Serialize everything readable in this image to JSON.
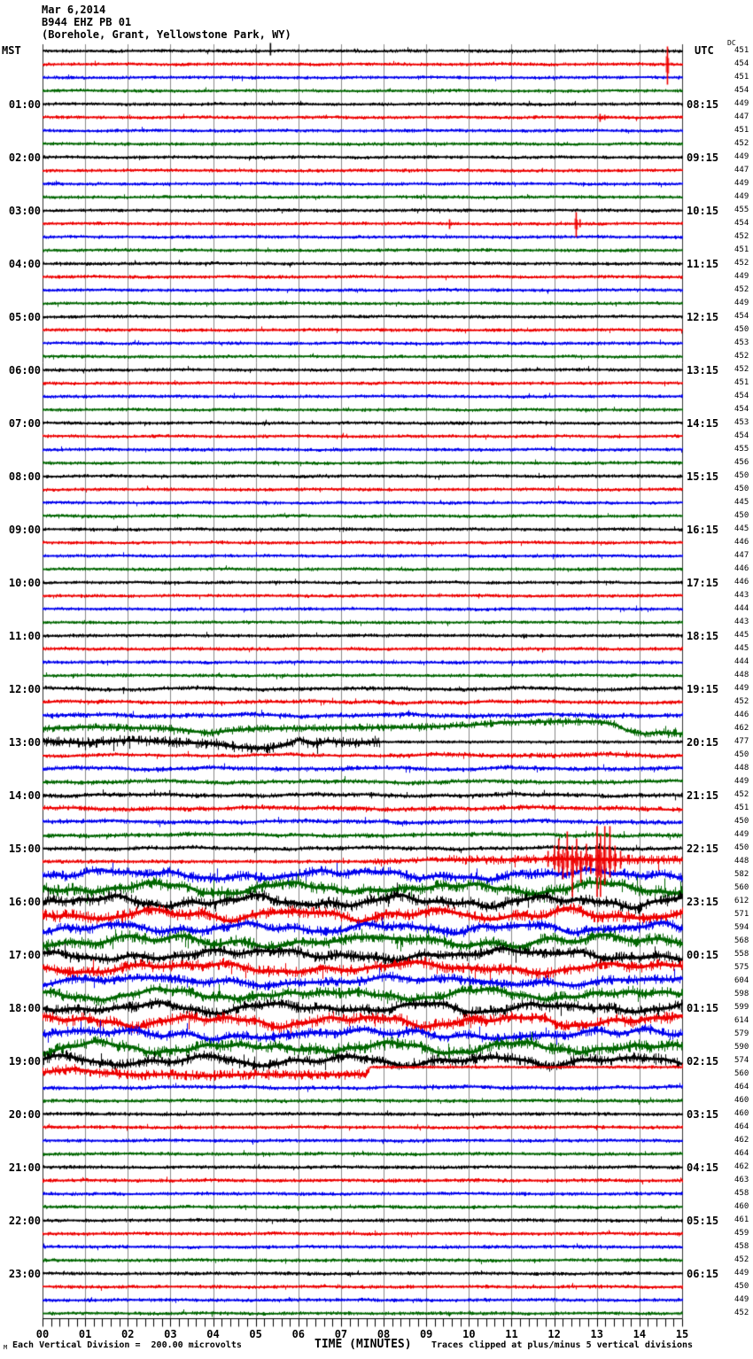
{
  "header": {
    "date": "Mar 6,2014",
    "station": "B944 EHZ PB 01",
    "location": "(Borehole, Grant, Yellowstone Park, WY)"
  },
  "axes": {
    "left_label": "MST",
    "right_label": "UTC",
    "dc_label": "DC",
    "x_label": "TIME (MINUTES)",
    "x_ticks": [
      "00",
      "01",
      "02",
      "03",
      "04",
      "05",
      "06",
      "07",
      "08",
      "09",
      "10",
      "11",
      "12",
      "13",
      "14",
      "15"
    ],
    "left_times": [
      "01:00",
      "02:00",
      "03:00",
      "04:00",
      "05:00",
      "06:00",
      "07:00",
      "08:00",
      "09:00",
      "10:00",
      "11:00",
      "12:00",
      "13:00",
      "14:00",
      "15:00",
      "16:00",
      "17:00",
      "18:00",
      "19:00",
      "20:00",
      "21:00",
      "22:00",
      "23:00"
    ],
    "right_times": [
      "08:15",
      "09:15",
      "10:15",
      "11:15",
      "12:15",
      "13:15",
      "14:15",
      "15:15",
      "16:15",
      "17:15",
      "18:15",
      "19:15",
      "20:15",
      "21:15",
      "22:15",
      "23:15",
      "00:15",
      "01:15",
      "02:15",
      "03:15",
      "04:15",
      "05:15",
      "06:15"
    ]
  },
  "footer": {
    "mark": "M",
    "left": "Each Vertical Division =  200.00 microvolts",
    "right": "Traces clipped at plus/minus 5 vertical divisions"
  },
  "colors": {
    "trace_cycle": [
      "#000000",
      "#ee0000",
      "#0000ee",
      "#006600"
    ],
    "grid": "#8a8a8a",
    "border": "#333333"
  },
  "chart_data": {
    "type": "line",
    "title": "B944 EHZ PB 01 helicorder, Mar 6 2014 (MST vs UTC)",
    "xlabel": "TIME (MINUTES)",
    "x_range": [
      0,
      15
    ],
    "minutes_per_row": 15,
    "rows_per_hour": 4,
    "vertical_division_microvolts": 200.0,
    "clip_divisions": 5,
    "legend_position": "none",
    "grid": "vertical, one line per minute",
    "rows": [
      {
        "dc": 451,
        "n": 0.6,
        "sp": [
          [
            5.34,
            9,
            5
          ]
        ]
      },
      {
        "dc": 454,
        "n": 0.6,
        "sp": [
          [
            14.65,
            20,
            23
          ]
        ]
      },
      {
        "dc": 451,
        "n": 0.6
      },
      {
        "dc": 454,
        "n": 0.6
      },
      {
        "dc": 449,
        "n": 0.6
      },
      {
        "dc": 447,
        "n": 0.6,
        "sp": [
          [
            13.07,
            4,
            5
          ],
          [
            13.18,
            3,
            3
          ]
        ]
      },
      {
        "dc": 451,
        "n": 0.6
      },
      {
        "dc": 452,
        "n": 0.6
      },
      {
        "dc": 449,
        "n": 0.6
      },
      {
        "dc": 447,
        "n": 0.6
      },
      {
        "dc": 449,
        "n": 0.6
      },
      {
        "dc": 449,
        "n": 0.6
      },
      {
        "dc": 455,
        "n": 0.6
      },
      {
        "dc": 454,
        "n": 0.6,
        "sp": [
          [
            9.54,
            5,
            6
          ],
          [
            12.51,
            13,
            15
          ],
          [
            12.6,
            5,
            4
          ]
        ]
      },
      {
        "dc": 452,
        "n": 0.6
      },
      {
        "dc": 451,
        "n": 0.6
      },
      {
        "dc": 452,
        "n": 0.6
      },
      {
        "dc": 449,
        "n": 0.6
      },
      {
        "dc": 452,
        "n": 0.6
      },
      {
        "dc": 449,
        "n": 0.6
      },
      {
        "dc": 454,
        "n": 0.6
      },
      {
        "dc": 450,
        "n": 0.6
      },
      {
        "dc": 453,
        "n": 0.6
      },
      {
        "dc": 452,
        "n": 0.6
      },
      {
        "dc": 452,
        "n": 0.6
      },
      {
        "dc": 451,
        "n": 0.6
      },
      {
        "dc": 454,
        "n": 0.6
      },
      {
        "dc": 454,
        "n": 0.6
      },
      {
        "dc": 453,
        "n": 0.6
      },
      {
        "dc": 454,
        "n": 0.6
      },
      {
        "dc": 455,
        "n": 0.6
      },
      {
        "dc": 456,
        "n": 0.6
      },
      {
        "dc": 450,
        "n": 0.6
      },
      {
        "dc": 450,
        "n": 0.6
      },
      {
        "dc": 445,
        "n": 0.6
      },
      {
        "dc": 450,
        "n": 0.6
      },
      {
        "dc": 445,
        "n": 0.6
      },
      {
        "dc": 446,
        "n": 0.6
      },
      {
        "dc": 447,
        "n": 0.6
      },
      {
        "dc": 446,
        "n": 0.6
      },
      {
        "dc": 446,
        "n": 0.6
      },
      {
        "dc": 443,
        "n": 0.6
      },
      {
        "dc": 444,
        "n": 0.6
      },
      {
        "dc": 443,
        "n": 0.6
      },
      {
        "dc": 445,
        "n": 0.65
      },
      {
        "dc": 445,
        "n": 0.65
      },
      {
        "dc": 444,
        "n": 0.65
      },
      {
        "dc": 448,
        "n": 0.65
      },
      {
        "dc": 449,
        "n": 0.8
      },
      {
        "dc": 452,
        "n": 0.8
      },
      {
        "dc": 446,
        "n": 1.0
      },
      {
        "dc": 462,
        "n": 1.6,
        "w": [
          [
            0,
            0
          ],
          [
            1,
            -2
          ],
          [
            3,
            0
          ],
          [
            3.9,
            5
          ],
          [
            4.4,
            2
          ],
          [
            5,
            0
          ],
          [
            7,
            -1
          ],
          [
            9,
            -2
          ],
          [
            10,
            -4
          ],
          [
            10.8,
            -7
          ],
          [
            12,
            -8
          ],
          [
            13,
            -8
          ],
          [
            13.4,
            -5
          ],
          [
            13.7,
            2
          ],
          [
            14.1,
            6
          ],
          [
            14.5,
            4
          ],
          [
            15,
            6
          ]
        ]
      },
      {
        "dc": 477,
        "n": 2.3,
        "ns": [
          [
            0,
            7.9,
            2.3
          ],
          [
            7.9,
            15,
            0.55
          ]
        ],
        "w": [
          [
            0,
            -1
          ],
          [
            1,
            1
          ],
          [
            2,
            -2
          ],
          [
            3,
            0
          ],
          [
            4,
            2
          ],
          [
            4.6,
            6
          ],
          [
            5.3,
            7
          ],
          [
            5.7,
            3
          ],
          [
            6.0,
            -3
          ],
          [
            6.3,
            2
          ],
          [
            6.7,
            -1
          ],
          [
            7.2,
            1
          ],
          [
            7.9,
            0
          ],
          [
            15,
            0
          ]
        ]
      },
      {
        "dc": 450,
        "n": 0.8,
        "ns": [
          [
            0,
            8,
            0.7
          ],
          [
            8,
            15,
            1.0
          ]
        ]
      },
      {
        "dc": 448,
        "n": 0.9
      },
      {
        "dc": 449,
        "n": 0.9
      },
      {
        "dc": 452,
        "n": 0.9
      },
      {
        "dc": 451,
        "n": 1.0
      },
      {
        "dc": 450,
        "n": 0.9
      },
      {
        "dc": 449,
        "n": 0.9
      },
      {
        "dc": 450,
        "n": 0.8
      },
      {
        "dc": 448,
        "n": 0.7,
        "ns": [
          [
            0,
            7.5,
            0.7
          ],
          [
            7.5,
            9.5,
            1.2
          ],
          [
            9.5,
            11.8,
            1.9
          ],
          [
            11.8,
            13.6,
            2.6
          ],
          [
            13.6,
            15,
            2.1
          ]
        ],
        "w": [
          [
            0,
            0
          ],
          [
            8,
            0
          ],
          [
            9,
            -2
          ],
          [
            10,
            -2
          ],
          [
            11,
            -2
          ],
          [
            12,
            -3
          ],
          [
            13.6,
            -2
          ],
          [
            15,
            -2
          ]
        ],
        "sp": [
          [
            11.85,
            12,
            6
          ],
          [
            12.0,
            18,
            9
          ],
          [
            12.1,
            26,
            13
          ],
          [
            12.2,
            14,
            20
          ],
          [
            12.3,
            34,
            16
          ],
          [
            12.42,
            18,
            40
          ],
          [
            12.52,
            26,
            12
          ],
          [
            12.62,
            12,
            24
          ],
          [
            12.75,
            20,
            10
          ],
          [
            12.85,
            8,
            14
          ],
          [
            13.0,
            40,
            40
          ],
          [
            13.08,
            30,
            40
          ],
          [
            13.18,
            40,
            26
          ],
          [
            13.3,
            40,
            18
          ],
          [
            13.42,
            18,
            12
          ],
          [
            13.55,
            12,
            8
          ]
        ]
      },
      {
        "dc": 582,
        "n": 2.2
      },
      {
        "dc": 560,
        "n": 2.6
      },
      {
        "dc": 612,
        "n": 2.6
      },
      {
        "dc": 571,
        "n": 2.6
      },
      {
        "dc": 594,
        "n": 2.2
      },
      {
        "dc": 568,
        "n": 2.6
      },
      {
        "dc": 558,
        "n": 2.4
      },
      {
        "dc": 575,
        "n": 2.4
      },
      {
        "dc": 604,
        "n": 2.0
      },
      {
        "dc": 598,
        "n": 2.4
      },
      {
        "dc": 599,
        "n": 2.4
      },
      {
        "dc": 614,
        "n": 2.6
      },
      {
        "dc": 579,
        "n": 2.2
      },
      {
        "dc": 590,
        "n": 2.6
      },
      {
        "dc": 574,
        "n": 2.4
      },
      {
        "dc": 560,
        "n": 2.2,
        "ns": [
          [
            0,
            7.67,
            2.2
          ],
          [
            7.67,
            15,
            0.55
          ]
        ],
        "w": [
          [
            0,
            -2
          ],
          [
            0.7,
            -6
          ],
          [
            1.3,
            -2
          ],
          [
            2.2,
            1
          ],
          [
            3.0,
            0
          ],
          [
            3.8,
            2
          ],
          [
            5,
            0
          ],
          [
            6,
            1
          ],
          [
            7.6,
            0
          ],
          [
            7.68,
            -8
          ],
          [
            15,
            -8
          ]
        ]
      },
      {
        "dc": 464,
        "n": 0.8
      },
      {
        "dc": 460,
        "n": 0.7
      },
      {
        "dc": 460,
        "n": 0.65
      },
      {
        "dc": 464,
        "n": 0.65
      },
      {
        "dc": 462,
        "n": 0.65
      },
      {
        "dc": 464,
        "n": 0.65
      },
      {
        "dc": 462,
        "n": 0.65
      },
      {
        "dc": 463,
        "n": 0.7
      },
      {
        "dc": 458,
        "n": 0.65
      },
      {
        "dc": 460,
        "n": 0.65
      },
      {
        "dc": 461,
        "n": 0.65
      },
      {
        "dc": 459,
        "n": 0.65
      },
      {
        "dc": 458,
        "n": 0.65
      },
      {
        "dc": 452,
        "n": 0.65
      },
      {
        "dc": 449,
        "n": 0.65
      },
      {
        "dc": 450,
        "n": 0.65
      },
      {
        "dc": 449,
        "n": 0.65
      },
      {
        "dc": 452,
        "n": 0.65
      }
    ]
  }
}
